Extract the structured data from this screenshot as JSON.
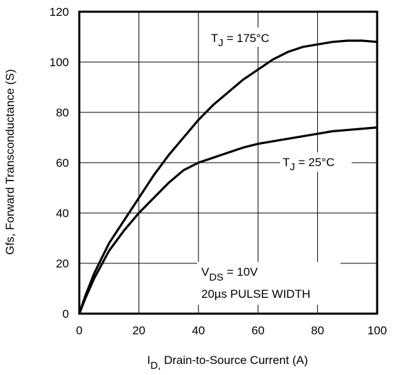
{
  "chart_data": {
    "type": "line",
    "title": "",
    "xlabel": {
      "main": "I",
      "sub": "D,",
      "rest": " Drain-to-Source Current (A)"
    },
    "ylabel": "Gfs, Forward Transconductance (S)",
    "xlim": [
      0,
      100
    ],
    "ylim": [
      0,
      120
    ],
    "x_ticks": [
      "0",
      "20",
      "40",
      "60",
      "80",
      "100"
    ],
    "y_ticks": [
      "0",
      "20",
      "40",
      "60",
      "80",
      "100",
      "120"
    ],
    "grid": true,
    "series": [
      {
        "name": "TJ = 175°C",
        "x": [
          0,
          2,
          5,
          10,
          15,
          20,
          25,
          30,
          35,
          40,
          45,
          50,
          55,
          60,
          65,
          70,
          75,
          80,
          85,
          90,
          95,
          100
        ],
        "y": [
          0,
          7,
          16,
          28,
          37,
          46,
          55,
          63,
          70,
          77,
          83,
          88,
          93,
          97,
          101,
          104,
          106,
          107,
          108,
          108.5,
          108.5,
          108
        ]
      },
      {
        "name": "TJ = 25°C",
        "x": [
          0,
          2,
          5,
          10,
          15,
          20,
          25,
          30,
          35,
          40,
          45,
          50,
          55,
          60,
          65,
          70,
          75,
          80,
          85,
          90,
          95,
          100
        ],
        "y": [
          0,
          6,
          14,
          25,
          33,
          40,
          46,
          52,
          57,
          60,
          62,
          64,
          66,
          67.5,
          68.5,
          69.5,
          70.5,
          71.5,
          72.5,
          73,
          73.5,
          74
        ]
      }
    ],
    "annotations": {
      "t175": {
        "main": "T",
        "sub": "J",
        "rest": " = 175°C"
      },
      "t25": {
        "main": "T",
        "sub": "J",
        "rest": " = 25°C"
      },
      "vds": {
        "main": "V",
        "sub": "DS",
        "rest": " = 10V"
      },
      "pulse": "20µs PULSE WIDTH"
    }
  }
}
